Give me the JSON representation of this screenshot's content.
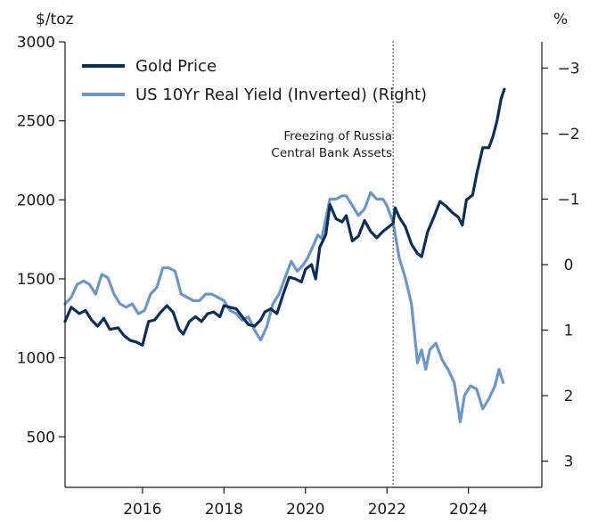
{
  "chart_data": {
    "type": "line",
    "title": "",
    "xlabel": "",
    "y_left_label": "$/toz",
    "y_right_label": "%",
    "x_range": [
      2014.1,
      2025.8
    ],
    "y_left_range": [
      180,
      3000
    ],
    "y_right_range": [
      3.4,
      -3.4
    ],
    "y_right_inverted": true,
    "x_ticks": [
      2016,
      2018,
      2020,
      2022,
      2024
    ],
    "x_tick_labels": [
      "2016",
      "2018",
      "2020",
      "2022",
      "2024"
    ],
    "y_left_ticks": [
      500,
      1000,
      1500,
      2000,
      2500,
      3000
    ],
    "y_left_tick_labels": [
      "500",
      "1000",
      "1500",
      "2000",
      "2500",
      "3000"
    ],
    "y_right_ticks": [
      -3,
      -2,
      -1,
      0,
      1,
      2,
      3
    ],
    "y_right_tick_labels": [
      "−3",
      "−2",
      "−1",
      "0",
      "1",
      "2",
      "3"
    ],
    "legend_position": "top-left",
    "annotation": {
      "x": 2022.15,
      "lines": [
        "Freezing of Russia",
        "Central Bank Assets"
      ]
    },
    "series": [
      {
        "name": "Gold Price",
        "axis": "left",
        "color": "#0b2f5c",
        "points": [
          [
            2014.1,
            1230
          ],
          [
            2014.25,
            1320
          ],
          [
            2014.45,
            1280
          ],
          [
            2014.6,
            1300
          ],
          [
            2014.75,
            1240
          ],
          [
            2014.9,
            1200
          ],
          [
            2015.05,
            1250
          ],
          [
            2015.2,
            1180
          ],
          [
            2015.4,
            1190
          ],
          [
            2015.55,
            1140
          ],
          [
            2015.7,
            1110
          ],
          [
            2015.85,
            1100
          ],
          [
            2016.0,
            1080
          ],
          [
            2016.15,
            1230
          ],
          [
            2016.3,
            1240
          ],
          [
            2016.45,
            1290
          ],
          [
            2016.6,
            1330
          ],
          [
            2016.75,
            1290
          ],
          [
            2016.9,
            1180
          ],
          [
            2017.0,
            1150
          ],
          [
            2017.15,
            1230
          ],
          [
            2017.3,
            1260
          ],
          [
            2017.45,
            1230
          ],
          [
            2017.6,
            1280
          ],
          [
            2017.75,
            1290
          ],
          [
            2017.9,
            1260
          ],
          [
            2018.0,
            1330
          ],
          [
            2018.15,
            1320
          ],
          [
            2018.3,
            1310
          ],
          [
            2018.45,
            1260
          ],
          [
            2018.6,
            1210
          ],
          [
            2018.75,
            1200
          ],
          [
            2018.9,
            1240
          ],
          [
            2019.0,
            1290
          ],
          [
            2019.15,
            1310
          ],
          [
            2019.3,
            1280
          ],
          [
            2019.45,
            1400
          ],
          [
            2019.6,
            1510
          ],
          [
            2019.75,
            1500
          ],
          [
            2019.9,
            1480
          ],
          [
            2020.0,
            1560
          ],
          [
            2020.15,
            1590
          ],
          [
            2020.25,
            1500
          ],
          [
            2020.35,
            1700
          ],
          [
            2020.5,
            1780
          ],
          [
            2020.6,
            1970
          ],
          [
            2020.75,
            1880
          ],
          [
            2020.9,
            1860
          ],
          [
            2021.0,
            1900
          ],
          [
            2021.15,
            1740
          ],
          [
            2021.3,
            1770
          ],
          [
            2021.45,
            1870
          ],
          [
            2021.6,
            1800
          ],
          [
            2021.75,
            1760
          ],
          [
            2021.9,
            1800
          ],
          [
            2022.05,
            1830
          ],
          [
            2022.15,
            1850
          ],
          [
            2022.2,
            1950
          ],
          [
            2022.3,
            1890
          ],
          [
            2022.45,
            1830
          ],
          [
            2022.6,
            1720
          ],
          [
            2022.75,
            1660
          ],
          [
            2022.85,
            1640
          ],
          [
            2023.0,
            1800
          ],
          [
            2023.15,
            1890
          ],
          [
            2023.3,
            1990
          ],
          [
            2023.45,
            1960
          ],
          [
            2023.6,
            1920
          ],
          [
            2023.75,
            1890
          ],
          [
            2023.85,
            1840
          ],
          [
            2023.95,
            2000
          ],
          [
            2024.1,
            2030
          ],
          [
            2024.2,
            2160
          ],
          [
            2024.35,
            2330
          ],
          [
            2024.5,
            2330
          ],
          [
            2024.6,
            2400
          ],
          [
            2024.7,
            2500
          ],
          [
            2024.8,
            2640
          ],
          [
            2024.88,
            2700
          ]
        ]
      },
      {
        "name": "US 10Yr Real Yield (Inverted) (Right)",
        "axis": "right",
        "color": "#6b96c9",
        "points": [
          [
            2014.1,
            0.6
          ],
          [
            2014.25,
            0.5
          ],
          [
            2014.4,
            0.3
          ],
          [
            2014.55,
            0.25
          ],
          [
            2014.7,
            0.3
          ],
          [
            2014.85,
            0.45
          ],
          [
            2015.0,
            0.15
          ],
          [
            2015.15,
            0.2
          ],
          [
            2015.3,
            0.45
          ],
          [
            2015.45,
            0.6
          ],
          [
            2015.6,
            0.65
          ],
          [
            2015.75,
            0.6
          ],
          [
            2015.9,
            0.75
          ],
          [
            2016.05,
            0.7
          ],
          [
            2016.2,
            0.45
          ],
          [
            2016.35,
            0.35
          ],
          [
            2016.5,
            0.05
          ],
          [
            2016.65,
            0.05
          ],
          [
            2016.8,
            0.1
          ],
          [
            2016.95,
            0.45
          ],
          [
            2017.1,
            0.5
          ],
          [
            2017.25,
            0.55
          ],
          [
            2017.4,
            0.55
          ],
          [
            2017.55,
            0.45
          ],
          [
            2017.7,
            0.45
          ],
          [
            2017.85,
            0.5
          ],
          [
            2018.0,
            0.55
          ],
          [
            2018.15,
            0.7
          ],
          [
            2018.3,
            0.75
          ],
          [
            2018.45,
            0.85
          ],
          [
            2018.6,
            0.8
          ],
          [
            2018.75,
            1.0
          ],
          [
            2018.9,
            1.15
          ],
          [
            2019.05,
            0.95
          ],
          [
            2019.2,
            0.6
          ],
          [
            2019.35,
            0.45
          ],
          [
            2019.5,
            0.2
          ],
          [
            2019.65,
            -0.05
          ],
          [
            2019.8,
            0.1
          ],
          [
            2019.95,
            0.0
          ],
          [
            2020.05,
            -0.1
          ],
          [
            2020.2,
            -0.3
          ],
          [
            2020.3,
            -0.45
          ],
          [
            2020.4,
            -0.4
          ],
          [
            2020.5,
            -0.7
          ],
          [
            2020.6,
            -1.0
          ],
          [
            2020.75,
            -1.0
          ],
          [
            2020.9,
            -1.05
          ],
          [
            2021.0,
            -1.05
          ],
          [
            2021.15,
            -0.9
          ],
          [
            2021.3,
            -0.75
          ],
          [
            2021.45,
            -0.85
          ],
          [
            2021.6,
            -1.1
          ],
          [
            2021.75,
            -1.0
          ],
          [
            2021.9,
            -1.0
          ],
          [
            2022.0,
            -0.9
          ],
          [
            2022.15,
            -0.65
          ],
          [
            2022.3,
            -0.1
          ],
          [
            2022.45,
            0.2
          ],
          [
            2022.6,
            0.6
          ],
          [
            2022.75,
            1.5
          ],
          [
            2022.85,
            1.3
          ],
          [
            2022.95,
            1.6
          ],
          [
            2023.05,
            1.3
          ],
          [
            2023.2,
            1.2
          ],
          [
            2023.35,
            1.45
          ],
          [
            2023.5,
            1.6
          ],
          [
            2023.65,
            1.8
          ],
          [
            2023.8,
            2.4
          ],
          [
            2023.9,
            2.0
          ],
          [
            2024.05,
            1.85
          ],
          [
            2024.2,
            1.9
          ],
          [
            2024.35,
            2.2
          ],
          [
            2024.5,
            2.05
          ],
          [
            2024.65,
            1.85
          ],
          [
            2024.75,
            1.6
          ],
          [
            2024.85,
            1.8
          ]
        ]
      }
    ]
  }
}
